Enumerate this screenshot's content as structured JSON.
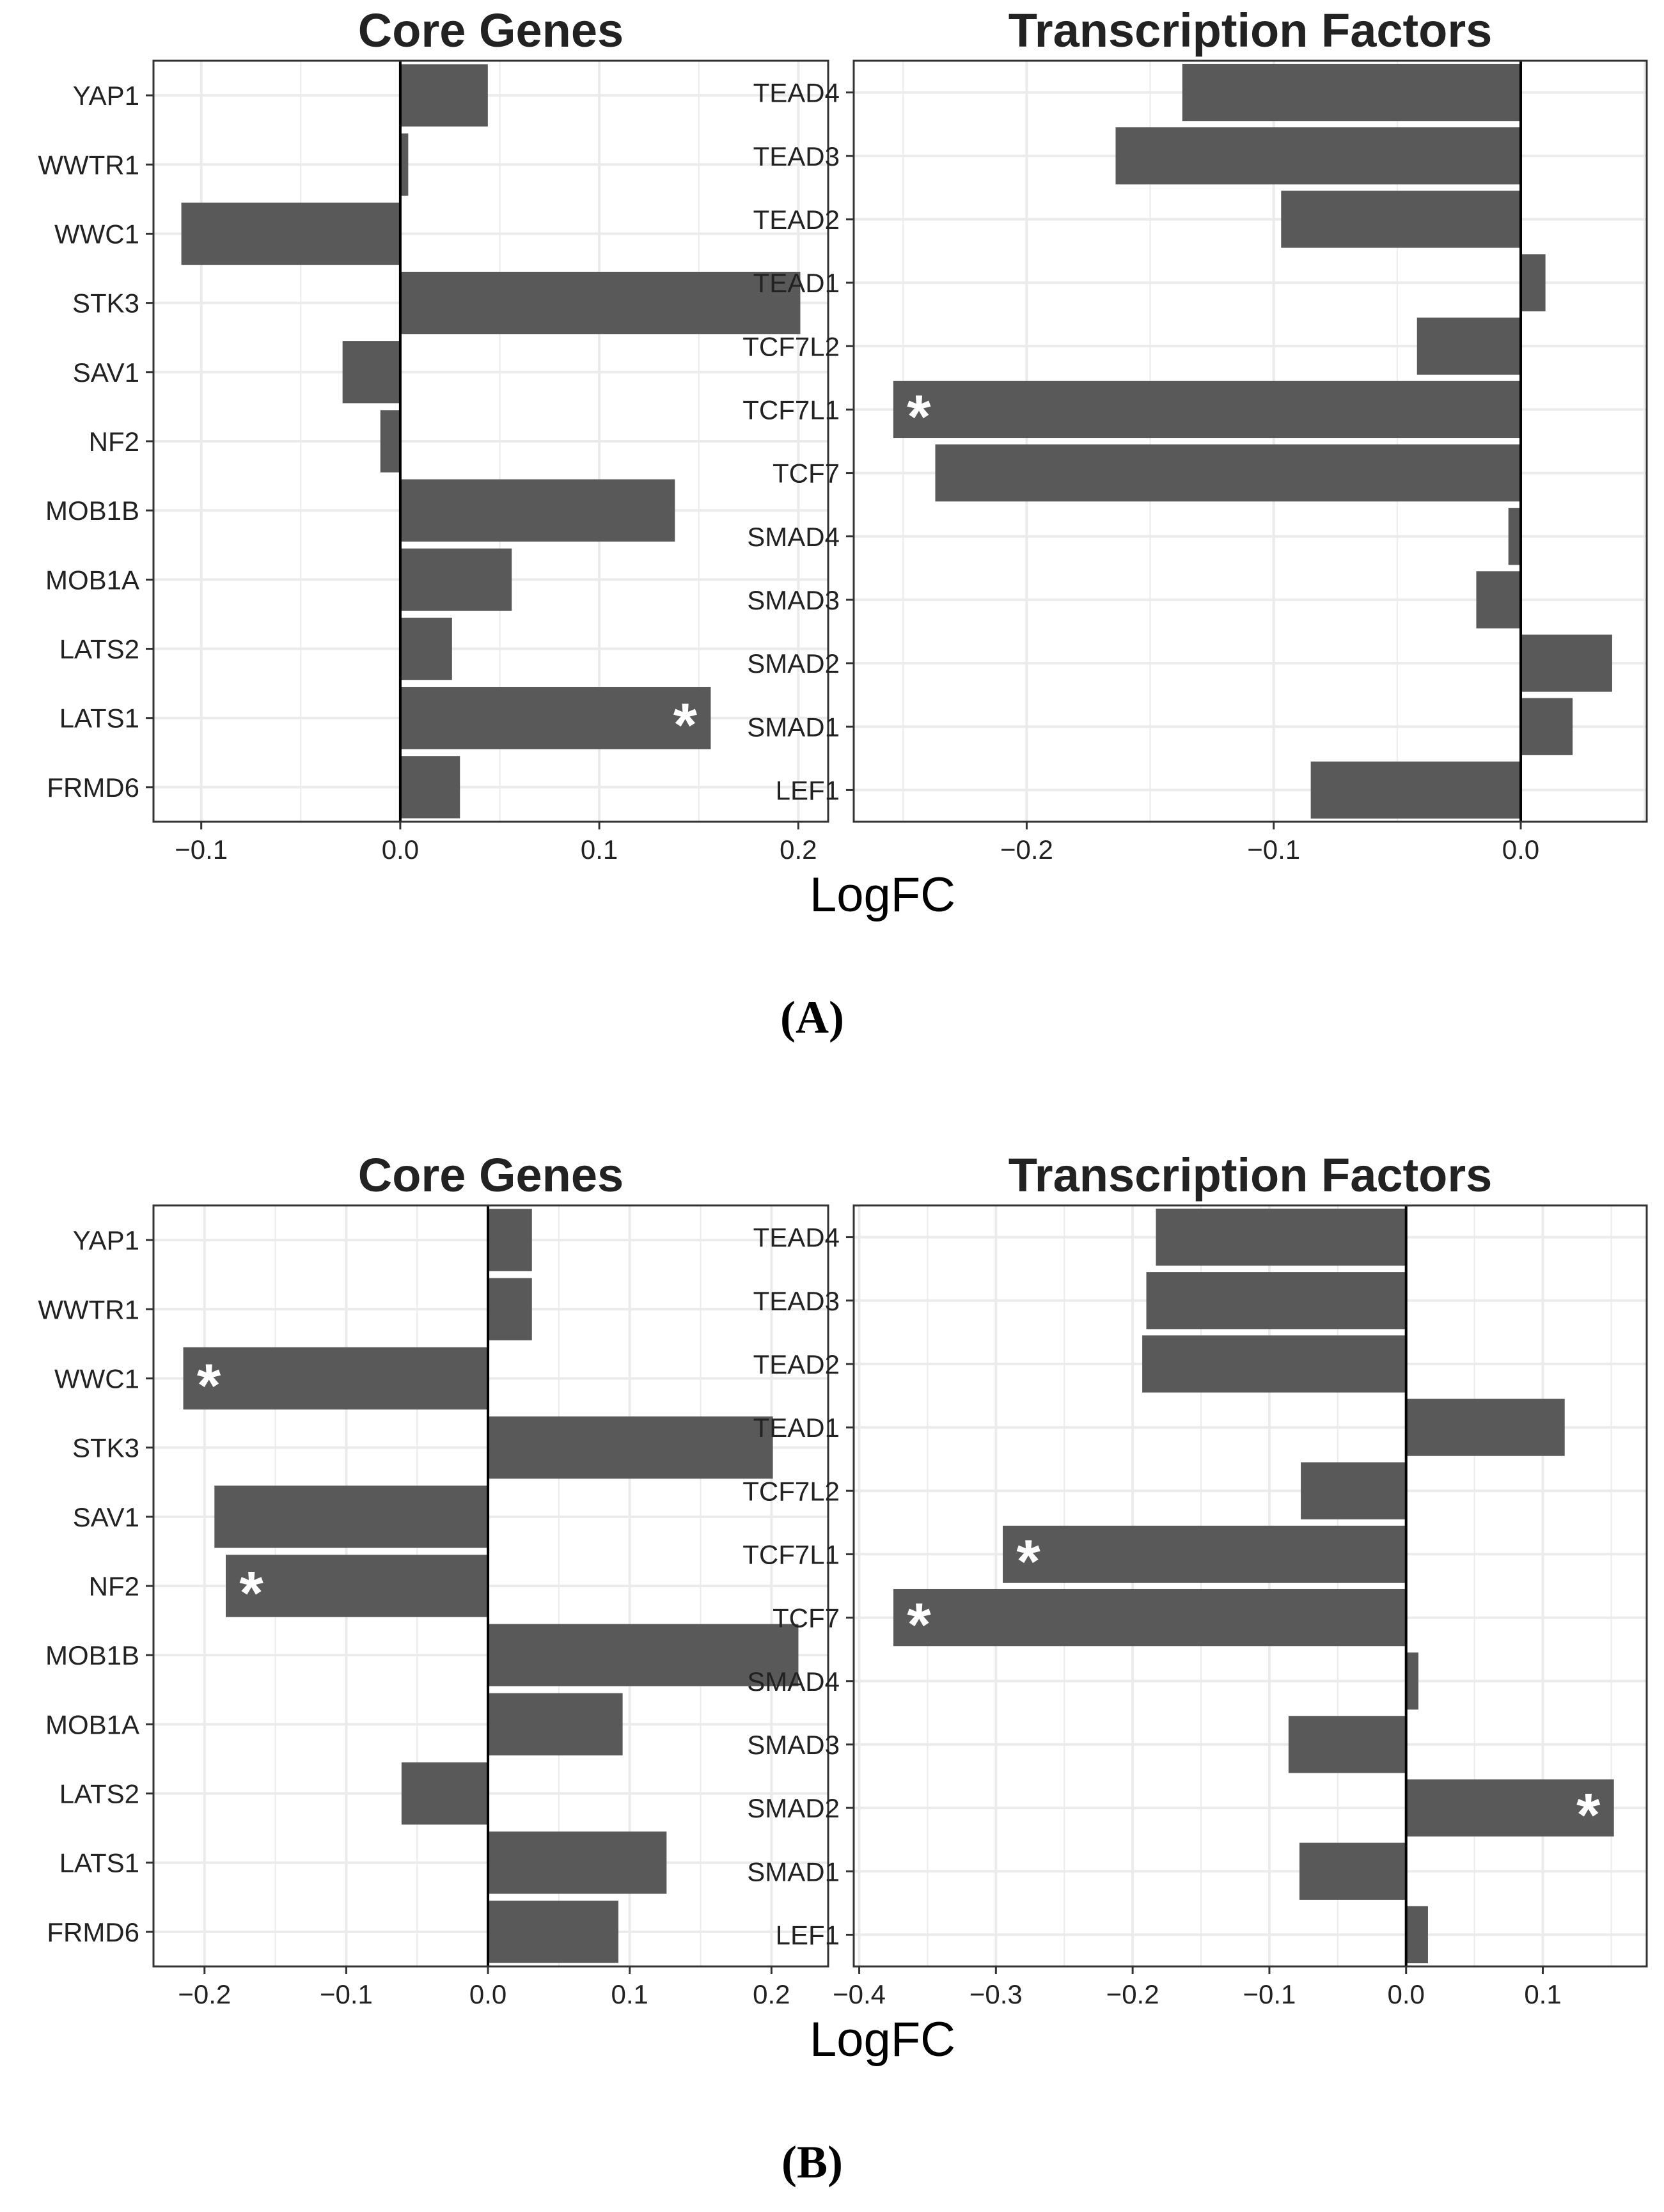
{
  "x_axis_title": "LogFC",
  "colors": {
    "bar": "#595959",
    "grid": "#ebebeb",
    "frame": "#333333",
    "zero": "#000000",
    "star_on_bar": "#ffffff",
    "star_off_bar": "#111111"
  },
  "panels": [
    {
      "label": "(A)",
      "x_axis_title": "LogFC"
    },
    {
      "label": "(B)",
      "x_axis_title": "LogFC"
    }
  ],
  "chart_data": [
    {
      "type": "bar",
      "orientation": "horizontal",
      "panel": "(A)",
      "title": "Core Genes",
      "categories": [
        "YAP1",
        "WWTR1",
        "WWC1",
        "STK3",
        "SAV1",
        "NF2",
        "MOB1B",
        "MOB1A",
        "LATS2",
        "LATS1",
        "FRMD6"
      ],
      "values": [
        0.044,
        0.004,
        -0.11,
        0.201,
        -0.029,
        -0.01,
        0.138,
        0.056,
        0.026,
        0.156,
        0.03
      ],
      "significant": [
        "LATS1"
      ],
      "xlabel": "LogFC",
      "xlim": [
        -0.124,
        0.215
      ],
      "xticks": [
        -0.1,
        0.0,
        0.1,
        0.2
      ],
      "xtick_labels": [
        "−0.1",
        "0.0",
        "0.1",
        "0.2"
      ],
      "grid": true
    },
    {
      "type": "bar",
      "orientation": "horizontal",
      "panel": "(A)",
      "title": "Transcription Factors",
      "categories": [
        "TEAD4",
        "TEAD3",
        "TEAD2",
        "TEAD1",
        "TCF7L2",
        "TCF7L1",
        "TCF7",
        "SMAD4",
        "SMAD3",
        "SMAD2",
        "SMAD1",
        "LEF1"
      ],
      "values": [
        -0.137,
        -0.164,
        -0.097,
        0.01,
        -0.042,
        -0.254,
        -0.237,
        -0.005,
        -0.018,
        0.037,
        0.021,
        -0.085
      ],
      "significant": [
        "TCF7L1"
      ],
      "xlabel": "LogFC",
      "xlim": [
        -0.27,
        0.051
      ],
      "xticks": [
        -0.2,
        -0.1,
        0.0
      ],
      "xtick_labels": [
        "−0.2",
        "−0.1",
        "0.0"
      ],
      "grid": true
    },
    {
      "type": "bar",
      "orientation": "horizontal",
      "panel": "(B)",
      "title": "Core Genes",
      "categories": [
        "YAP1",
        "WWTR1",
        "WWC1",
        "STK3",
        "SAV1",
        "NF2",
        "MOB1B",
        "MOB1A",
        "LATS2",
        "LATS1",
        "FRMD6"
      ],
      "values": [
        0.031,
        0.031,
        -0.215,
        0.201,
        -0.193,
        -0.185,
        0.219,
        0.095,
        -0.061,
        0.126,
        0.092
      ],
      "significant": [
        "WWC1",
        "NF2"
      ],
      "xlabel": "LogFC",
      "xlim": [
        -0.236,
        0.24
      ],
      "xticks": [
        -0.2,
        -0.1,
        0.0,
        0.1,
        0.2
      ],
      "xtick_labels": [
        "−0.2",
        "−0.1",
        "0.0",
        "0.1",
        "0.2"
      ],
      "grid": true
    },
    {
      "type": "bar",
      "orientation": "horizontal",
      "panel": "(B)",
      "title": "Transcription Factors",
      "categories": [
        "TEAD4",
        "TEAD3",
        "TEAD2",
        "TEAD1",
        "TCF7L2",
        "TCF7L1",
        "TCF7",
        "SMAD4",
        "SMAD3",
        "SMAD2",
        "SMAD1",
        "LEF1"
      ],
      "values": [
        -0.183,
        -0.19,
        -0.193,
        0.116,
        -0.077,
        -0.295,
        -0.375,
        0.009,
        -0.086,
        0.152,
        -0.078,
        0.016
      ],
      "significant": [
        "TCF7L1",
        "TCF7",
        "SMAD2"
      ],
      "xlabel": "LogFC",
      "xlim": [
        -0.404,
        0.176
      ],
      "xticks": [
        -0.4,
        -0.3,
        -0.2,
        -0.1,
        0.0,
        0.1
      ],
      "xtick_labels": [
        "−0.4",
        "−0.3",
        "−0.2",
        "−0.1",
        "0.0",
        "0.1"
      ],
      "grid": true
    }
  ]
}
